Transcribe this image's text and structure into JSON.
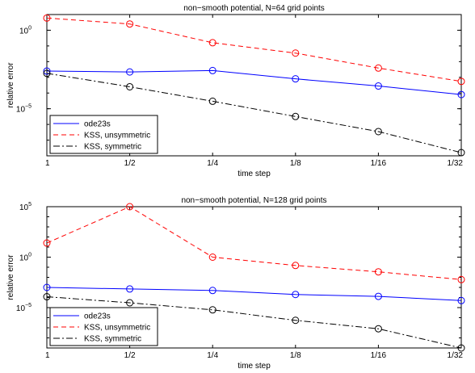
{
  "chart_data": [
    {
      "type": "line",
      "title": "non−smooth potential, N=64 grid points",
      "xlabel": "time step",
      "ylabel": "relative error",
      "categories": [
        "1",
        "1/2",
        "1/4",
        "1/8",
        "1/16",
        "1/32"
      ],
      "y_scale": "log",
      "ylim": [
        1e-08,
        10
      ],
      "ytick_labels": [
        {
          "label": "10",
          "exp": "0",
          "value": 1
        },
        {
          "label": "10",
          "exp": "−5",
          "value": 1e-05
        }
      ],
      "legend_position": "bottom-left",
      "grid": false,
      "series": [
        {
          "name": "ode23s",
          "color": "#0000ff",
          "dash": "solid",
          "marker": "circle",
          "values": [
            0.0025,
            0.0022,
            0.0027,
            0.0008,
            0.00028,
            8e-05
          ]
        },
        {
          "name": "KSS, unsymmetric",
          "color": "#ff0000",
          "dash": "dashed",
          "marker": "circle",
          "values": [
            6.0,
            2.5,
            0.16,
            0.035,
            0.0039,
            0.00055
          ]
        },
        {
          "name": "KSS, symmetric",
          "color": "#000000",
          "dash": "dashdot",
          "marker": "circle",
          "values": [
            0.0018,
            0.00025,
            3e-05,
            3.2e-06,
            3.5e-07,
            1.6e-08
          ]
        }
      ]
    },
    {
      "type": "line",
      "title": "non−smooth potential, N=128 grid points",
      "xlabel": "time step",
      "ylabel": "relative error",
      "categories": [
        "1",
        "1/2",
        "1/4",
        "1/8",
        "1/16",
        "1/32"
      ],
      "y_scale": "log",
      "ylim": [
        1e-09,
        100000.0
      ],
      "ytick_labels": [
        {
          "label": "10",
          "exp": "5",
          "value": 100000.0
        },
        {
          "label": "10",
          "exp": "0",
          "value": 1
        },
        {
          "label": "10",
          "exp": "−5",
          "value": 1e-05
        }
      ],
      "legend_position": "bottom-left",
      "grid": false,
      "series": [
        {
          "name": "ode23s",
          "color": "#0000ff",
          "dash": "solid",
          "marker": "circle",
          "values": [
            0.001,
            0.0007,
            0.0005,
            0.0002,
            0.00013,
            5e-05
          ]
        },
        {
          "name": "KSS, unsymmetric",
          "color": "#ff0000",
          "dash": "dashed",
          "marker": "circle",
          "values": [
            25,
            100000,
            1.0,
            0.15,
            0.035,
            0.006
          ]
        },
        {
          "name": "KSS, symmetric",
          "color": "#000000",
          "dash": "dashdot",
          "marker": "circle",
          "values": [
            0.00012,
            3e-05,
            6e-06,
            5.5e-07,
            8e-08,
            1e-09
          ]
        }
      ]
    }
  ]
}
